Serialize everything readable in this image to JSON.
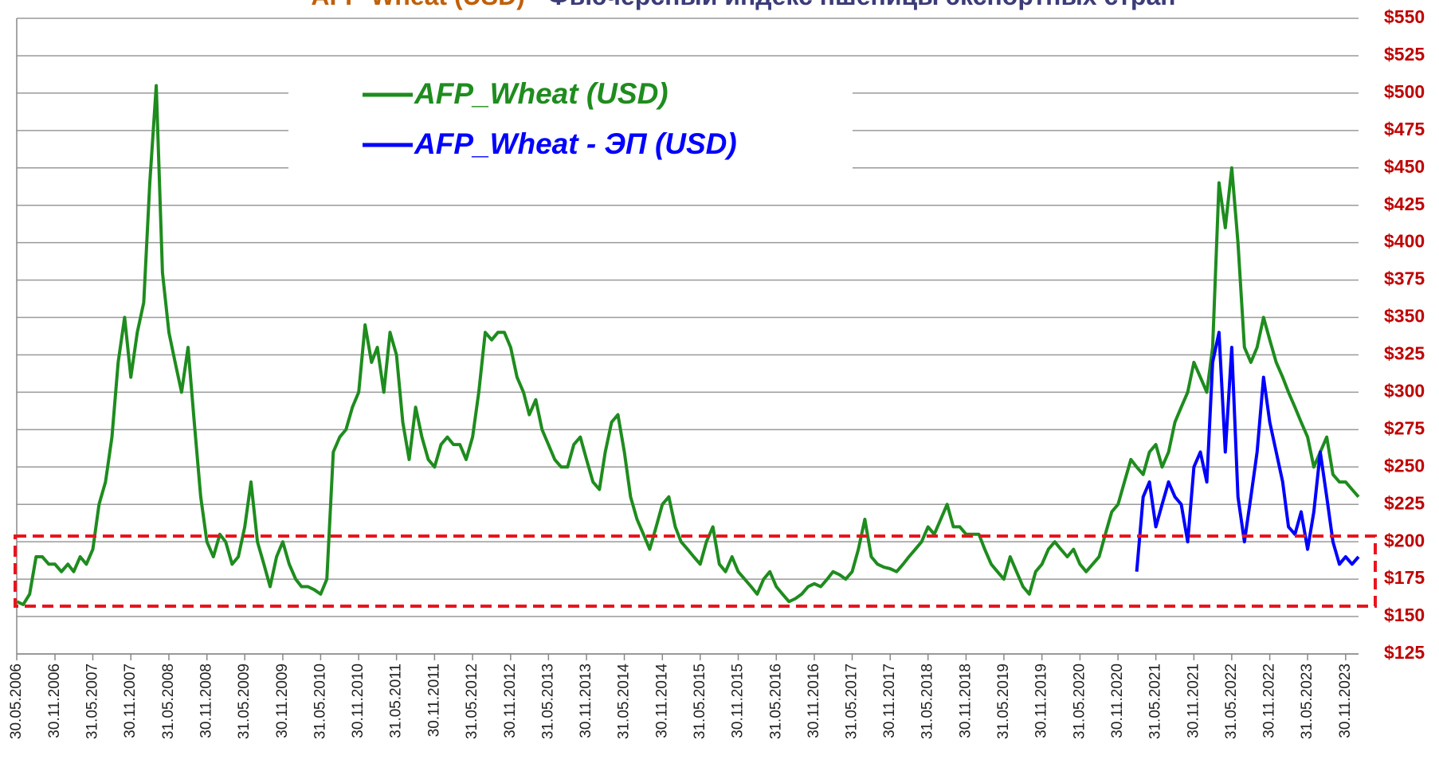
{
  "chart_data": {
    "type": "line",
    "title": [
      "AFP-Wheat (USD)",
      " - Фьючерсный индекс пшеницы экспортных стран"
    ],
    "xlim": [
      "30.05.2006",
      "31.01.2024"
    ],
    "xticks": [
      "30.05.2006",
      "30.11.2006",
      "31.05.2007",
      "30.11.2007",
      "31.05.2008",
      "30.11.2008",
      "31.05.2009",
      "30.11.2009",
      "31.05.2010",
      "30.11.2010",
      "31.05.2011",
      "30.11.2011",
      "31.05.2012",
      "30.11.2012",
      "31.05.2013",
      "30.11.2013",
      "31.05.2014",
      "30.11.2014",
      "31.05.2015",
      "30.11.2015",
      "31.05.2016",
      "30.11.2016",
      "31.05.2017",
      "30.11.2017",
      "31.05.2018",
      "30.11.2018",
      "31.05.2019",
      "30.11.2019",
      "31.05.2020",
      "30.11.2020",
      "31.05.2021",
      "30.11.2021",
      "31.05.2022",
      "30.11.2022",
      "31.05.2023",
      "30.11.2023"
    ],
    "ylim": [
      125,
      550
    ],
    "yticks": [
      {
        "value": 125,
        "label": "$125"
      },
      {
        "value": 150,
        "label": "$150"
      },
      {
        "value": 175,
        "label": "$175"
      },
      {
        "value": 200,
        "label": "$200"
      },
      {
        "value": 225,
        "label": "$225"
      },
      {
        "value": 250,
        "label": "$250"
      },
      {
        "value": 275,
        "label": "$275"
      },
      {
        "value": 300,
        "label": "$300"
      },
      {
        "value": 325,
        "label": "$325"
      },
      {
        "value": 350,
        "label": "$350"
      },
      {
        "value": 375,
        "label": "$375"
      },
      {
        "value": 400,
        "label": "$400"
      },
      {
        "value": 425,
        "label": "$425"
      },
      {
        "value": 450,
        "label": "$450"
      },
      {
        "value": 475,
        "label": "$475"
      },
      {
        "value": 500,
        "label": "$500"
      },
      {
        "value": 525,
        "label": "$525"
      },
      {
        "value": 550,
        "label": "$550"
      }
    ],
    "grid": true,
    "x": [
      "31.05.2006",
      "30.06.2006",
      "31.07.2006",
      "31.08.2006",
      "30.09.2006",
      "31.10.2006",
      "30.11.2006",
      "31.12.2006",
      "31.01.2007",
      "28.02.2007",
      "31.03.2007",
      "30.04.2007",
      "31.05.2007",
      "30.06.2007",
      "31.07.2007",
      "31.08.2007",
      "30.09.2007",
      "31.10.2007",
      "30.11.2007",
      "31.12.2007",
      "31.01.2008",
      "29.02.2008",
      "31.03.2008",
      "30.04.2008",
      "31.05.2008",
      "30.06.2008",
      "31.07.2008",
      "31.08.2008",
      "30.09.2008",
      "31.10.2008",
      "30.11.2008",
      "31.12.2008",
      "31.01.2009",
      "28.02.2009",
      "31.03.2009",
      "30.04.2009",
      "31.05.2009",
      "30.06.2009",
      "31.07.2009",
      "31.08.2009",
      "30.09.2009",
      "31.10.2009",
      "30.11.2009",
      "31.12.2009",
      "31.01.2010",
      "28.02.2010",
      "31.03.2010",
      "30.04.2010",
      "31.05.2010",
      "30.06.2010",
      "31.07.2010",
      "31.08.2010",
      "30.09.2010",
      "31.10.2010",
      "30.11.2010",
      "31.12.2010",
      "31.01.2011",
      "28.02.2011",
      "31.03.2011",
      "30.04.2011",
      "31.05.2011",
      "30.06.2011",
      "31.07.2011",
      "31.08.2011",
      "30.09.2011",
      "31.10.2011",
      "30.11.2011",
      "31.12.2011",
      "31.01.2012",
      "29.02.2012",
      "31.03.2012",
      "30.04.2012",
      "31.05.2012",
      "30.06.2012",
      "31.07.2012",
      "31.08.2012",
      "30.09.2012",
      "31.10.2012",
      "30.11.2012",
      "31.12.2012",
      "31.01.2013",
      "28.02.2013",
      "31.03.2013",
      "30.04.2013",
      "31.05.2013",
      "30.06.2013",
      "31.07.2013",
      "31.08.2013",
      "30.09.2013",
      "31.10.2013",
      "30.11.2013",
      "31.12.2013",
      "31.01.2014",
      "28.02.2014",
      "31.03.2014",
      "30.04.2014",
      "31.05.2014",
      "30.06.2014",
      "31.07.2014",
      "31.08.2014",
      "30.09.2014",
      "31.10.2014",
      "30.11.2014",
      "31.12.2014",
      "31.01.2015",
      "28.02.2015",
      "31.03.2015",
      "30.04.2015",
      "31.05.2015",
      "30.06.2015",
      "31.07.2015",
      "31.08.2015",
      "30.09.2015",
      "31.10.2015",
      "30.11.2015",
      "31.12.2015",
      "31.01.2016",
      "29.02.2016",
      "31.03.2016",
      "30.04.2016",
      "31.05.2016",
      "30.06.2016",
      "31.07.2016",
      "31.08.2016",
      "30.09.2016",
      "31.10.2016",
      "30.11.2016",
      "31.12.2016",
      "31.01.2017",
      "28.02.2017",
      "31.03.2017",
      "30.04.2017",
      "31.05.2017",
      "30.06.2017",
      "31.07.2017",
      "31.08.2017",
      "30.09.2017",
      "31.10.2017",
      "30.11.2017",
      "31.12.2017",
      "31.01.2018",
      "28.02.2018",
      "31.03.2018",
      "30.04.2018",
      "31.05.2018",
      "30.06.2018",
      "31.07.2018",
      "31.08.2018",
      "30.09.2018",
      "31.10.2018",
      "30.11.2018",
      "31.12.2018",
      "31.01.2019",
      "28.02.2019",
      "31.03.2019",
      "30.04.2019",
      "31.05.2019",
      "30.06.2019",
      "31.07.2019",
      "31.08.2019",
      "30.09.2019",
      "31.10.2019",
      "30.11.2019",
      "31.12.2019",
      "31.01.2020",
      "29.02.2020",
      "31.03.2020",
      "30.04.2020",
      "31.05.2020",
      "30.06.2020",
      "31.07.2020",
      "31.08.2020",
      "30.09.2020",
      "31.10.2020",
      "30.11.2020",
      "31.12.2020",
      "31.01.2021",
      "28.02.2021",
      "31.03.2021",
      "30.04.2021",
      "31.05.2021",
      "30.06.2021",
      "31.07.2021",
      "31.08.2021",
      "30.09.2021",
      "31.10.2021",
      "30.11.2021",
      "31.12.2021",
      "31.01.2022",
      "28.02.2022",
      "31.03.2022",
      "30.04.2022",
      "31.05.2022",
      "30.06.2022",
      "31.07.2022",
      "31.08.2022",
      "30.09.2022",
      "31.10.2022",
      "30.11.2022",
      "31.12.2022",
      "31.01.2023",
      "28.02.2023",
      "31.03.2023",
      "30.04.2023",
      "31.05.2023",
      "30.06.2023",
      "31.07.2023",
      "31.08.2023",
      "30.09.2023",
      "31.10.2023",
      "30.11.2023",
      "31.12.2023",
      "31.01.2024"
    ],
    "series": [
      {
        "name": "AFP_Wheat (USD)",
        "color": "#1e8c1e",
        "values": [
          160,
          158,
          165,
          190,
          190,
          185,
          185,
          180,
          185,
          180,
          190,
          185,
          195,
          225,
          240,
          270,
          320,
          350,
          310,
          340,
          360,
          440,
          505,
          380,
          340,
          320,
          300,
          330,
          280,
          230,
          200,
          190,
          205,
          200,
          185,
          190,
          210,
          240,
          200,
          185,
          170,
          190,
          200,
          185,
          175,
          170,
          170,
          168,
          165,
          175,
          260,
          270,
          275,
          290,
          300,
          345,
          320,
          330,
          300,
          340,
          325,
          280,
          255,
          290,
          270,
          255,
          250,
          265,
          270,
          265,
          265,
          255,
          270,
          300,
          340,
          335,
          340,
          340,
          330,
          310,
          300,
          285,
          295,
          275,
          265,
          255,
          250,
          250,
          265,
          270,
          255,
          240,
          235,
          260,
          280,
          285,
          260,
          230,
          215,
          205,
          195,
          210,
          225,
          230,
          210,
          200,
          195,
          190,
          185,
          200,
          210,
          185,
          180,
          190,
          180,
          175,
          170,
          165,
          175,
          180,
          170,
          165,
          160,
          162,
          165,
          170,
          172,
          170,
          175,
          180,
          178,
          175,
          180,
          195,
          215,
          190,
          185,
          183,
          182,
          180,
          185,
          190,
          195,
          200,
          210,
          205,
          215,
          225,
          210,
          210,
          205,
          205,
          205,
          195,
          185,
          180,
          175,
          190,
          180,
          170,
          165,
          180,
          185,
          195,
          200,
          195,
          190,
          195,
          185,
          180,
          185,
          190,
          205,
          220,
          225,
          240,
          255,
          250,
          245,
          260,
          265,
          250,
          260,
          280,
          290,
          300,
          320,
          310,
          300,
          330,
          440,
          410,
          450,
          400,
          330,
          320,
          330,
          350,
          335,
          320,
          310,
          300,
          290,
          280,
          270,
          250,
          260,
          270,
          245,
          240,
          240,
          235,
          230
        ]
      },
      {
        "name": "AFP_Wheat - ЭП (USD)",
        "color": "#0000ff",
        "values": [
          null,
          null,
          null,
          null,
          null,
          null,
          null,
          null,
          null,
          null,
          null,
          null,
          null,
          null,
          null,
          null,
          null,
          null,
          null,
          null,
          null,
          null,
          null,
          null,
          null,
          null,
          null,
          null,
          null,
          null,
          null,
          null,
          null,
          null,
          null,
          null,
          null,
          null,
          null,
          null,
          null,
          null,
          null,
          null,
          null,
          null,
          null,
          null,
          null,
          null,
          null,
          null,
          null,
          null,
          null,
          null,
          null,
          null,
          null,
          null,
          null,
          null,
          null,
          null,
          null,
          null,
          null,
          null,
          null,
          null,
          null,
          null,
          null,
          null,
          null,
          null,
          null,
          null,
          null,
          null,
          null,
          null,
          null,
          null,
          null,
          null,
          null,
          null,
          null,
          null,
          null,
          null,
          null,
          null,
          null,
          null,
          null,
          null,
          null,
          null,
          null,
          null,
          null,
          null,
          null,
          null,
          null,
          null,
          null,
          null,
          null,
          null,
          null,
          null,
          null,
          null,
          null,
          null,
          null,
          null,
          null,
          null,
          null,
          null,
          null,
          null,
          null,
          null,
          null,
          null,
          null,
          null,
          null,
          null,
          null,
          null,
          null,
          null,
          null,
          null,
          null,
          null,
          null,
          null,
          null,
          null,
          null,
          null,
          null,
          null,
          null,
          null,
          null,
          null,
          null,
          null,
          null,
          null,
          null,
          null,
          null,
          null,
          null,
          null,
          null,
          null,
          null,
          null,
          null,
          null,
          null,
          null,
          null,
          null,
          null,
          null,
          null,
          180,
          230,
          240,
          210,
          225,
          240,
          230,
          225,
          200,
          250,
          260,
          240,
          320,
          340,
          260,
          330,
          230,
          200,
          230,
          260,
          310,
          280,
          260,
          240,
          210,
          205,
          220,
          195,
          220,
          260,
          230,
          200,
          185,
          190,
          185,
          190
        ]
      }
    ]
  }
}
